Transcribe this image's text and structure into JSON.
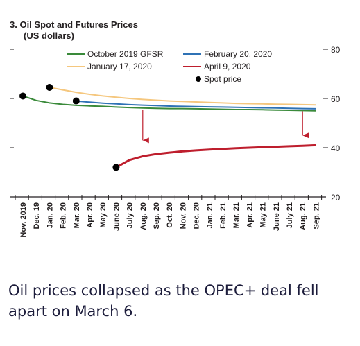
{
  "chart_data": {
    "type": "line",
    "title": "3. Oil Spot and Futures Prices",
    "subtitle": "(US dollars)",
    "x_labels": [
      "Nov. 2019",
      "Dec. 19",
      "Jan. 20",
      "Feb. 20",
      "Mar. 20",
      "Apr. 20",
      "May 20",
      "June 20",
      "July 20",
      "Aug. 20",
      "Sep. 20",
      "Oct. 20",
      "Nov. 20",
      "Dec. 20",
      "Jan. 21",
      "Feb. 21",
      "Mar. 21",
      "Apr. 21",
      "May 21",
      "June 21",
      "July 21",
      "Aug. 21",
      "Sep. 21"
    ],
    "ylim": [
      20,
      80
    ],
    "yticks": [
      20,
      40,
      60,
      80
    ],
    "y_axis_side": "right",
    "legend_position": "top",
    "series": [
      {
        "name": "October 2019 GFSR",
        "color": "#3a8a3a",
        "values": [
          61.0,
          59.2,
          58.2,
          57.6,
          57.2,
          57.0,
          56.8,
          56.5,
          56.3,
          56.1,
          56.0,
          55.9,
          55.9,
          55.8,
          55.7,
          55.6,
          55.5,
          55.5,
          55.4,
          55.3,
          55.2,
          55.1,
          55.0
        ]
      },
      {
        "name": "January 17, 2020",
        "color": "#f5c77e",
        "values": [
          null,
          null,
          64.5,
          63.5,
          62.5,
          61.7,
          61.0,
          60.5,
          60.0,
          59.6,
          59.3,
          59.0,
          58.8,
          58.6,
          58.4,
          58.2,
          58.0,
          57.9,
          57.8,
          57.7,
          57.6,
          57.5,
          57.4
        ]
      },
      {
        "name": "February 20, 2020",
        "color": "#2f72b5",
        "values": [
          null,
          null,
          null,
          null,
          59.0,
          58.5,
          58.1,
          57.8,
          57.5,
          57.3,
          57.1,
          56.9,
          56.8,
          56.7,
          56.6,
          56.5,
          56.4,
          56.3,
          56.2,
          56.1,
          56.0,
          55.9,
          55.8
        ]
      },
      {
        "name": "April 9, 2020",
        "color": "#be1e2d",
        "values": [
          null,
          null,
          null,
          null,
          null,
          null,
          null,
          32.0,
          35.0,
          36.5,
          37.4,
          38.0,
          38.5,
          38.9,
          39.2,
          39.5,
          39.8,
          40.0,
          40.2,
          40.4,
          40.6,
          40.8,
          41.0
        ]
      }
    ],
    "spot_price": {
      "name": "Spot price",
      "color": "#000000",
      "points": [
        {
          "x": "Nov. 2019",
          "y": 61.0
        },
        {
          "x": "Jan. 20",
          "y": 64.5
        },
        {
          "x": "Mar. 20",
          "y": 59.0
        },
        {
          "x": "June 20",
          "y": 32.0
        }
      ]
    },
    "arrows": [
      {
        "x": "Aug. 20",
        "from": 55.5,
        "to": 43.0,
        "color": "#be1e2d"
      },
      {
        "x": "Aug. 21",
        "from": 54.8,
        "to": 45.0,
        "color": "#be1e2d"
      }
    ]
  },
  "caption": "Oil prices collapsed as the OPEC+ deal fell apart on March 6."
}
